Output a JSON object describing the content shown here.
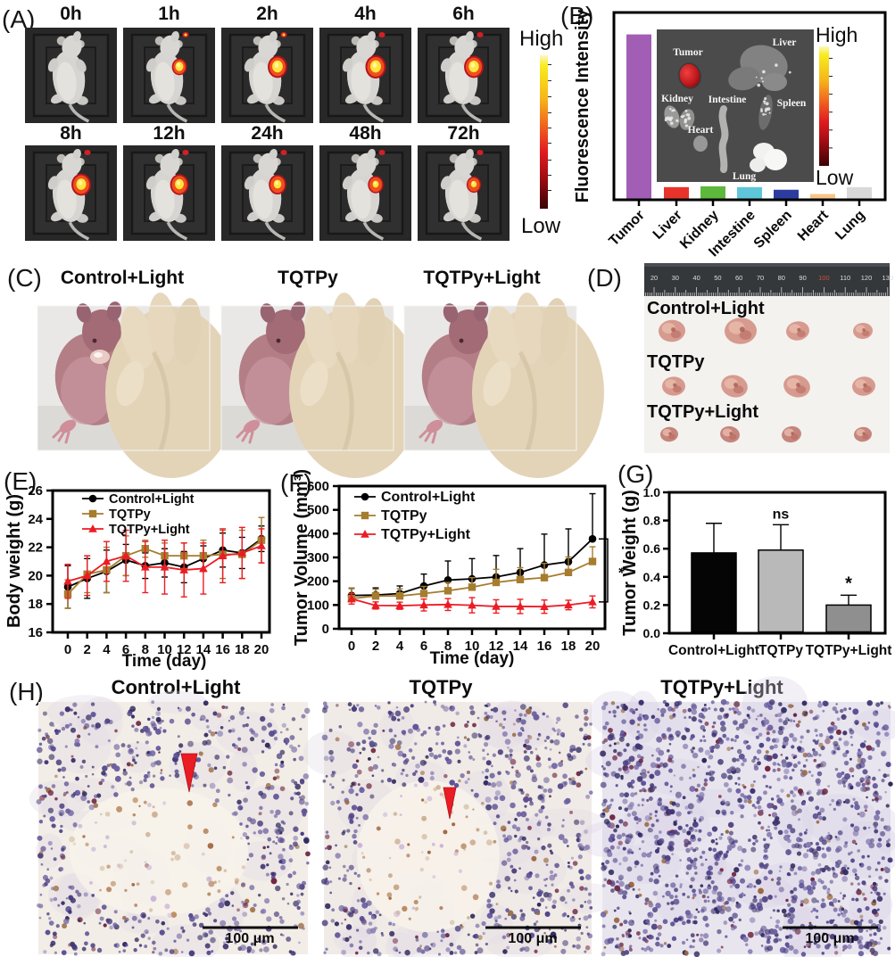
{
  "panelA": {
    "label": "(A)",
    "description": "in-vivo fluorescence imaging time course",
    "colorbar": {
      "high": "High",
      "low": "Low"
    },
    "timepoints": [
      {
        "label": "0h",
        "tumor_signal": 0,
        "core": 0.0,
        "head_signal": false
      },
      {
        "label": "1h",
        "tumor_signal": 0.72,
        "core": 0.62,
        "head_signal": true
      },
      {
        "label": "2h",
        "tumor_signal": 0.95,
        "core": 0.62,
        "head_signal": true
      },
      {
        "label": "4h",
        "tumor_signal": 1.0,
        "core": 0.6,
        "head_signal": true
      },
      {
        "label": "6h",
        "tumor_signal": 0.95,
        "core": 0.6,
        "head_signal": true
      },
      {
        "label": "8h",
        "tumor_signal": 0.95,
        "core": 0.58,
        "head_signal": true
      },
      {
        "label": "12h",
        "tumor_signal": 0.9,
        "core": 0.55,
        "head_signal": true
      },
      {
        "label": "24h",
        "tumor_signal": 0.85,
        "core": 0.5,
        "head_signal": true
      },
      {
        "label": "48h",
        "tumor_signal": 0.75,
        "core": 0.45,
        "head_signal": true
      },
      {
        "label": "72h",
        "tumor_signal": 0.7,
        "core": 0.45,
        "head_signal": true
      }
    ]
  },
  "panelB": {
    "label": "(B)",
    "ylabel": "Fluorescence Intensity",
    "colorbar": {
      "high": "High",
      "low": "Low"
    },
    "inset_organs": [
      "Tumor",
      "Liver",
      "Kidney",
      "Intestine",
      "Spleen",
      "Heart",
      "Lung"
    ]
  },
  "panelC": {
    "label": "(C)",
    "groups": [
      "Control+Light",
      "TQTPy",
      "TQTPy+Light"
    ]
  },
  "panelD": {
    "label": "(D)",
    "rows": [
      "Control+Light",
      "TQTPy",
      "TQTPy+Light"
    ],
    "tumors_per_row": 4,
    "ruler_numbers": [
      "20",
      "30",
      "40",
      "50",
      "60",
      "70",
      "80",
      "90",
      "100",
      "110",
      "120",
      "130"
    ],
    "ruler_highlight": "100"
  },
  "panelE": {
    "label": "(E)"
  },
  "panelF": {
    "label": "(F)"
  },
  "panelG": {
    "label": "(G)"
  },
  "panelH": {
    "label": "(H)",
    "groups": [
      "Control+Light",
      "TQTPy",
      "TQTPy+Light"
    ],
    "scale_bar": "100 μm"
  },
  "chart_data": [
    {
      "id": "B",
      "type": "bar",
      "ylabel": "Fluorescence Intensity",
      "categories": [
        "Tumor",
        "Liver",
        "Kidney",
        "Intestine",
        "Spleen",
        "Heart",
        "Lung"
      ],
      "values": [
        1.0,
        0.069,
        0.074,
        0.069,
        0.053,
        0.027,
        0.069
      ],
      "ylim": [
        0,
        1.12
      ],
      "bar_colors": [
        "#a25eb5",
        "#e8332a",
        "#5eb83c",
        "#5ec6d8",
        "#2b3c9e",
        "#f6c689",
        "#d9d9d9"
      ]
    },
    {
      "id": "E",
      "type": "line",
      "xlabel": "Time (day)",
      "ylabel": "Body weight (g)",
      "x": [
        0,
        2,
        4,
        6,
        8,
        10,
        12,
        14,
        16,
        18,
        20
      ],
      "ylim": [
        16,
        26
      ],
      "yticks": [
        16,
        18,
        20,
        22,
        24,
        26
      ],
      "legend_position": "top-left-inside",
      "series": [
        {
          "name": "Control+Light",
          "color": "#000000",
          "marker": "circle",
          "values": [
            19.2,
            19.8,
            20.3,
            21.1,
            20.7,
            20.9,
            20.6,
            21.2,
            21.8,
            21.6,
            22.6
          ],
          "errors": [
            1.5,
            1.4,
            1.5,
            1.1,
            0.9,
            1.0,
            1.1,
            0.9,
            1.2,
            1.1,
            0.9
          ],
          "error_dir": "both"
        },
        {
          "name": "TQTPy",
          "color": "#a67c2e",
          "marker": "square",
          "values": [
            18.7,
            20.1,
            20.4,
            21.4,
            21.9,
            21.4,
            21.4,
            21.4,
            21.5,
            21.5,
            22.5
          ],
          "errors": [
            1.0,
            1.3,
            1.6,
            1.4,
            0.6,
            0.9,
            0.9,
            1.1,
            1.7,
            1.7,
            1.6
          ],
          "error_dir": "both"
        },
        {
          "name": "TQTPy+Light",
          "color": "#ec1c24",
          "marker": "triangle",
          "values": [
            19.6,
            20.0,
            21.0,
            21.4,
            20.6,
            20.6,
            20.4,
            20.5,
            21.4,
            21.6,
            22.1
          ],
          "errors": [
            1.2,
            1.4,
            1.4,
            1.8,
            1.8,
            1.9,
            1.9,
            1.8,
            1.9,
            1.8,
            1.2
          ],
          "error_dir": "both"
        }
      ]
    },
    {
      "id": "F",
      "type": "line",
      "xlabel": "Time (day)",
      "ylabel": "Tumor Volume (mm³)",
      "x": [
        0,
        2,
        4,
        6,
        8,
        10,
        12,
        14,
        16,
        18,
        20
      ],
      "ylim": [
        0,
        600
      ],
      "yticks": [
        0,
        100,
        200,
        300,
        400,
        500,
        600
      ],
      "legend_position": "top-left-inside",
      "series": [
        {
          "name": "Control+Light",
          "color": "#000000",
          "marker": "circle",
          "values": [
            140,
            142,
            148,
            180,
            205,
            210,
            218,
            237,
            268,
            282,
            378
          ],
          "errors": [
            30,
            30,
            32,
            50,
            80,
            85,
            90,
            100,
            130,
            138,
            190
          ],
          "error_dir": "up"
        },
        {
          "name": "TQTPy",
          "color": "#a67c2e",
          "marker": "square",
          "values": [
            127,
            138,
            138,
            148,
            160,
            175,
            195,
            207,
            215,
            237,
            283
          ],
          "errors": [
            45,
            28,
            30,
            30,
            35,
            40,
            55,
            50,
            60,
            65,
            62
          ],
          "error_dir": "up"
        },
        {
          "name": "TQTPy+Light",
          "color": "#ec1c24",
          "marker": "triangle",
          "values": [
            126,
            98,
            97,
            100,
            102,
            99,
            94,
            94,
            93,
            100,
            113
          ],
          "errors": [
            22,
            15,
            15,
            25,
            25,
            32,
            28,
            30,
            28,
            20,
            25
          ],
          "error_dir": "both"
        }
      ],
      "significance": {
        "text": "*",
        "between": [
          "Control+Light",
          "TQTPy+Light"
        ],
        "at_x": 20
      }
    },
    {
      "id": "G",
      "type": "bar",
      "ylabel": "Tumor Weight (g)",
      "categories": [
        "Control+Light",
        "TQTPy",
        "TQTPy+Light"
      ],
      "values": [
        0.57,
        0.59,
        0.2
      ],
      "errors": [
        0.21,
        0.18,
        0.07
      ],
      "annotations": [
        "",
        "ns",
        "*"
      ],
      "ylim": [
        0,
        1.0
      ],
      "yticks": [
        "0.0",
        "0.2",
        "0.4",
        "0.6",
        "0.8",
        "1.0"
      ],
      "bar_colors": [
        "#050505",
        "#b9b9b9",
        "#8f8f8f"
      ]
    }
  ]
}
